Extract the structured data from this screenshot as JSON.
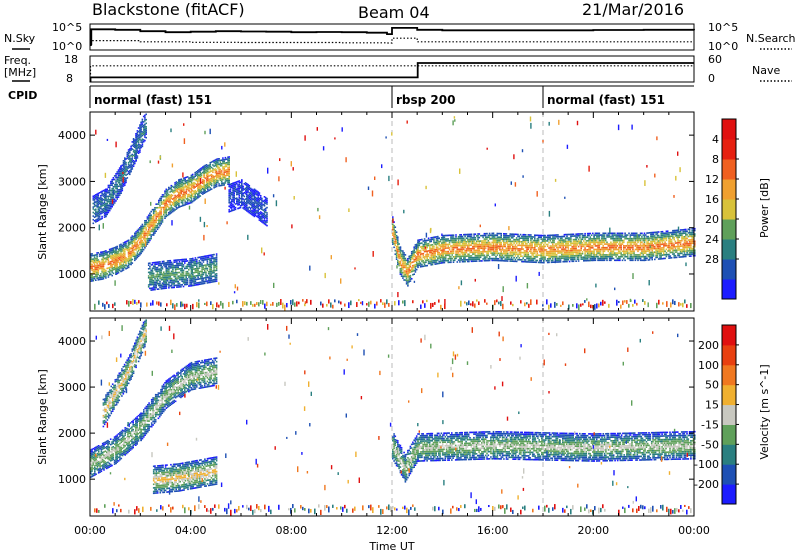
{
  "header": {
    "station": "Blackstone (fitACF)",
    "beam": "Beam 04",
    "date": "21/Mar/2016"
  },
  "noise_panel": {
    "left_label": "N.Sky",
    "right_label": "N.Search",
    "left_ticks": [
      "10^5",
      "10^0"
    ],
    "right_ticks": [
      "10^5",
      "10^0"
    ],
    "sky_hours": [
      0,
      0.05,
      1.0,
      2.0,
      3.0,
      4.0,
      5.0,
      6.0,
      7.0,
      8.0,
      9.0,
      10.0,
      11.0,
      11.8,
      12.0,
      13.0,
      14.0,
      16.0,
      18.0,
      20.0,
      22.0,
      24.0
    ],
    "sky_values": [
      0.2,
      0.82,
      0.8,
      0.74,
      0.7,
      0.72,
      0.74,
      0.73,
      0.72,
      0.7,
      0.71,
      0.7,
      0.68,
      0.62,
      0.88,
      0.8,
      0.78,
      0.78,
      0.78,
      0.79,
      0.8,
      0.78
    ],
    "search_hours": [
      0,
      0.05,
      2.0,
      4.0,
      6.0,
      8.0,
      10.0,
      11.8,
      12.0,
      13.0,
      16.0,
      20.0,
      24.0
    ],
    "search_values": [
      0.15,
      0.35,
      0.3,
      0.28,
      0.27,
      0.27,
      0.26,
      0.25,
      0.45,
      0.3,
      0.3,
      0.3,
      0.3
    ]
  },
  "freq_panel": {
    "left_label_1": "Freq.",
    "left_label_2": "[MHz]",
    "right_label": "Nave",
    "left_ticks": [
      "18",
      "8"
    ],
    "right_ticks": [
      "60",
      "0"
    ],
    "freq_ylim": [
      8,
      18
    ],
    "freq_hours": [
      0,
      0.02,
      13.0,
      13.02,
      24.0
    ],
    "freq_values": [
      8,
      9.5,
      9.5,
      15.5,
      15.5
    ],
    "nave_ylim": [
      0,
      60
    ],
    "nave_hours": [
      0,
      0.02,
      24.0
    ],
    "nave_values": [
      0,
      38,
      38
    ]
  },
  "cpid": {
    "label": "CPID",
    "segments": [
      {
        "start": 0,
        "end": 12.0,
        "text": "normal (fast) 151"
      },
      {
        "start": 12.0,
        "end": 18.0,
        "text": "rbsp 200"
      },
      {
        "start": 18.0,
        "end": 24.0,
        "text": "normal (fast) 151"
      }
    ]
  },
  "chart_data": [
    {
      "type": "heatmap",
      "ylabel": "Slant Range [km]",
      "ylim": [
        200,
        4500
      ],
      "yticks": [
        1000,
        2000,
        3000,
        4000
      ],
      "colorbar_label": "Power [dB]",
      "colorbar_ticks": [
        "4",
        "8",
        "12",
        "16",
        "20",
        "24",
        "28"
      ],
      "colorbar_colors": [
        "#1c1cff",
        "#1e50b4",
        "#2a7f80",
        "#5fa05a",
        "#d8c23a",
        "#f0a030",
        "#f06020",
        "#e62010",
        "#e01010"
      ],
      "echo_bands": [
        {
          "x": [
            0.0,
            0.5,
            1.0,
            1.5,
            2.0,
            2.5,
            3.0,
            3.5,
            4.0,
            4.5,
            5.0,
            5.5
          ],
          "y": [
            1100,
            1150,
            1250,
            1400,
            1700,
            2100,
            2500,
            2700,
            2800,
            3000,
            3150,
            3200
          ],
          "level": 6
        },
        {
          "x": [
            0.1,
            0.6,
            1.2,
            1.8,
            2.2
          ],
          "y": [
            2350,
            2500,
            3000,
            3700,
            4200
          ],
          "level": 2
        },
        {
          "x": [
            2.3,
            3.0,
            4.0,
            5.0
          ],
          "y": [
            900,
            950,
            1000,
            1100
          ],
          "level": 3
        },
        {
          "x": [
            5.5,
            6.0,
            6.5,
            7.0
          ],
          "y": [
            2600,
            2700,
            2500,
            2300
          ],
          "level": 1
        },
        {
          "x": [
            12.0,
            12.3,
            12.6,
            13.0,
            14.0,
            16.0,
            18.0,
            20.0,
            22.0,
            24.0
          ],
          "y": [
            1900,
            1250,
            1000,
            1400,
            1500,
            1550,
            1500,
            1550,
            1550,
            1650
          ],
          "level": 6
        }
      ]
    },
    {
      "type": "heatmap",
      "ylabel": "Slant Range [km]",
      "ylim": [
        200,
        4500
      ],
      "yticks": [
        1000,
        2000,
        3000,
        4000
      ],
      "colorbar_label": "Velocity [m s^-1]",
      "colorbar_ticks": [
        "200",
        "100",
        "50",
        "15",
        "-15",
        "-50",
        "-100",
        "-200"
      ],
      "colorbar_colors": [
        "#1c1cff",
        "#1e50b4",
        "#2a7f80",
        "#5fa05a",
        "#c8c8c0",
        "#f0b030",
        "#f07820",
        "#e84010",
        "#e01010"
      ],
      "echo_bands": [
        {
          "x": [
            0.0,
            1.0,
            2.0,
            3.0,
            4.0,
            5.0
          ],
          "y": [
            1300,
            1600,
            2100,
            2800,
            3200,
            3300
          ],
          "level": 4
        },
        {
          "x": [
            0.5,
            1.5,
            2.2
          ],
          "y": [
            2400,
            3300,
            4200
          ],
          "level": 5
        },
        {
          "x": [
            2.5,
            3.5,
            5.0
          ],
          "y": [
            950,
            1000,
            1150
          ],
          "level": 5
        },
        {
          "x": [
            12.0,
            12.5,
            13.0,
            16.0,
            20.0,
            24.0
          ],
          "y": [
            1700,
            1200,
            1650,
            1700,
            1650,
            1700
          ],
          "level": 4
        }
      ]
    }
  ],
  "x_axis": {
    "label": "Time UT",
    "ticks": [
      "00:00",
      "04:00",
      "08:00",
      "12:00",
      "16:00",
      "20:00",
      "00:00"
    ]
  }
}
